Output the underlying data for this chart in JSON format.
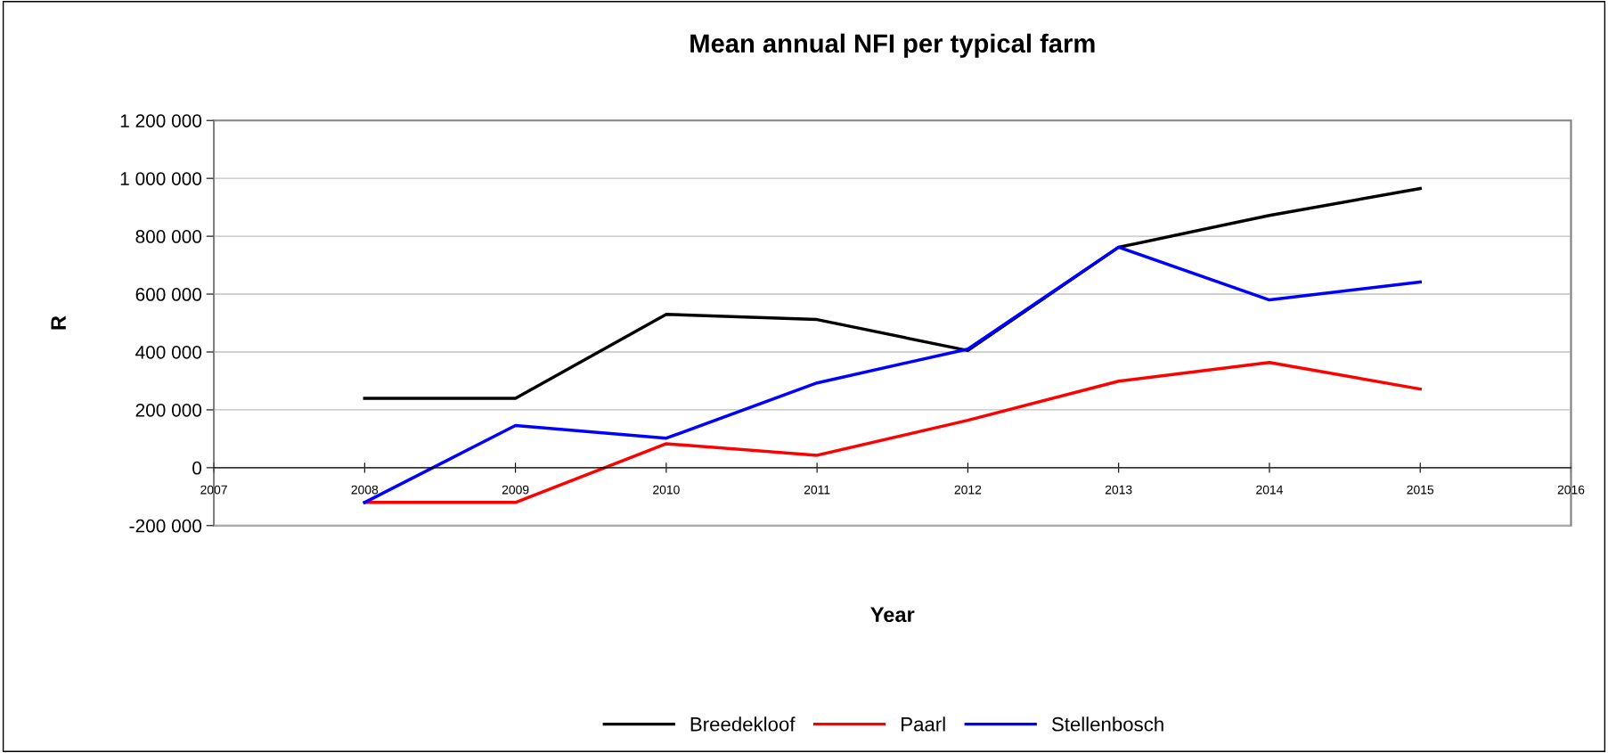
{
  "chart_data": {
    "type": "line",
    "title": "Mean annual NFI per typical farm",
    "xlabel": "Year",
    "ylabel": "R",
    "x": [
      2008,
      2009,
      2010,
      2011,
      2012,
      2013,
      2014,
      2015
    ],
    "series": [
      {
        "name": "Breedekloof",
        "color": "#000000",
        "values": [
          240000,
          240000,
          530000,
          512000,
          405000,
          762000,
          872000,
          965000
        ]
      },
      {
        "name": "Paarl",
        "color": "#ff0000",
        "values": [
          -120000,
          -120000,
          83000,
          43000,
          164000,
          299000,
          364000,
          272000
        ]
      },
      {
        "name": "Stellenbosch",
        "color": "#0000ff",
        "values": [
          -120000,
          146000,
          102000,
          293000,
          410000,
          762000,
          580000,
          642000
        ]
      }
    ],
    "xlim": [
      2007,
      2016
    ],
    "xticks": [
      2007,
      2008,
      2009,
      2010,
      2011,
      2012,
      2013,
      2014,
      2015,
      2016
    ],
    "ylim": [
      -200000,
      1200000
    ],
    "yticks": [
      {
        "value": -200000,
        "label": "-200 000"
      },
      0,
      {
        "value": 200000,
        "label": "200 000"
      },
      {
        "value": 400000,
        "label": "400 000"
      },
      {
        "value": 600000,
        "label": "600 000"
      },
      {
        "value": 800000,
        "label": "800 000"
      },
      {
        "value": 1000000,
        "label": "1 000 000"
      },
      {
        "value": 1200000,
        "label": "1 200 000"
      }
    ],
    "grid": "y",
    "legend": "bottom",
    "marker": "none",
    "line_style": "solid"
  }
}
